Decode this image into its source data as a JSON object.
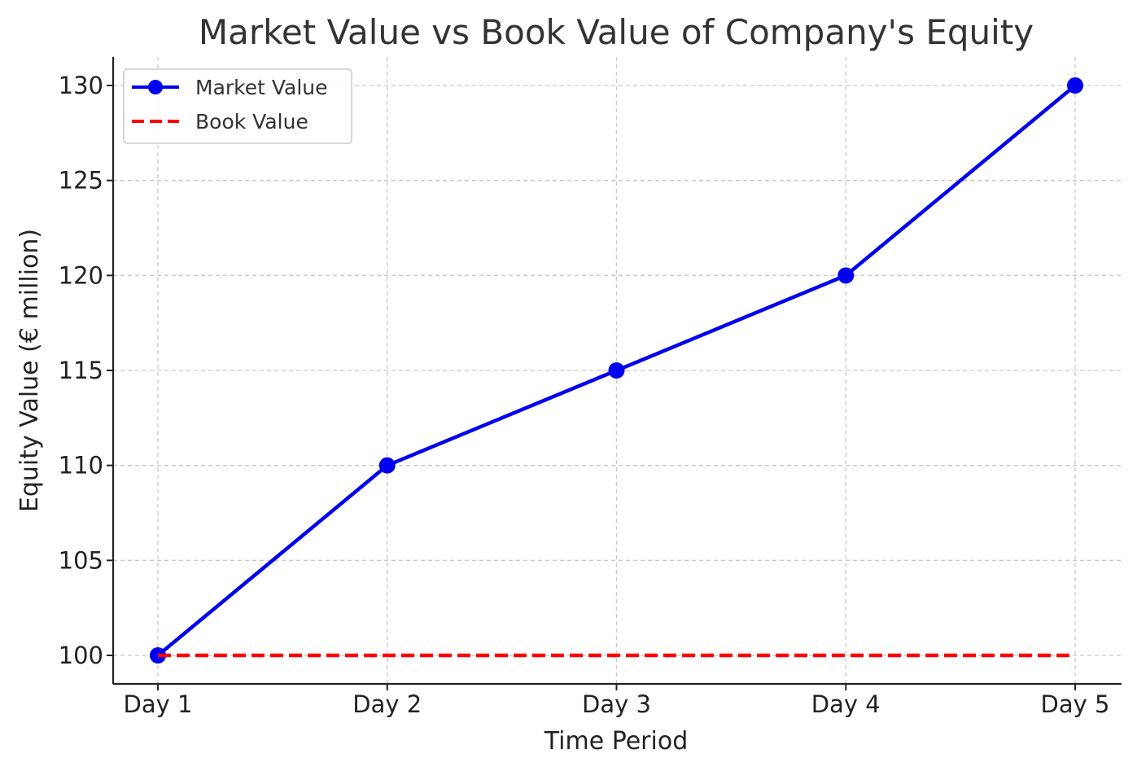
{
  "chart_data": {
    "type": "line",
    "title": "Market Value vs Book Value of Company's Equity",
    "xlabel": "Time Period",
    "ylabel": "Equity Value (€ million)",
    "categories": [
      "Day 1",
      "Day 2",
      "Day 3",
      "Day 4",
      "Day 5"
    ],
    "ylim": [
      98.5,
      131.5
    ],
    "yticks": [
      100,
      105,
      110,
      115,
      120,
      125,
      130
    ],
    "grid": true,
    "legend_position": "top-left",
    "series": [
      {
        "name": "Market Value",
        "values": [
          100,
          110,
          115,
          120,
          130
        ],
        "color": "#0000ee",
        "line_style": "solid",
        "marker": "circle"
      },
      {
        "name": "Book Value",
        "values": [
          100,
          100,
          100,
          100,
          100
        ],
        "color": "#ff0000",
        "line_style": "dashed",
        "marker": "none"
      }
    ]
  }
}
